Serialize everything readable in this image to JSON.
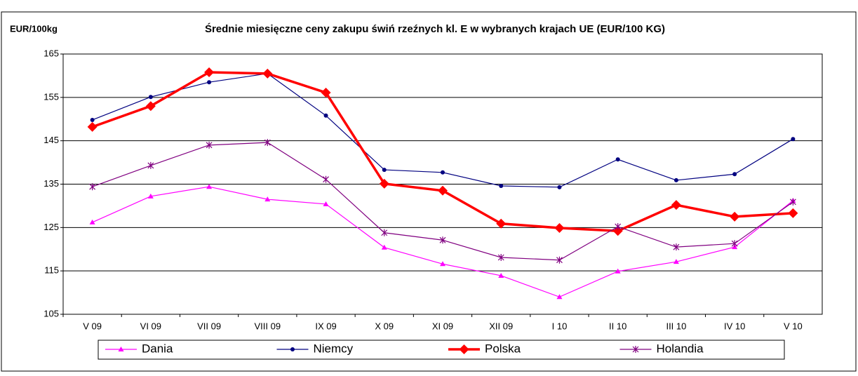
{
  "chart_data": {
    "type": "line",
    "title": "Średnie miesięczne ceny zakupu świń rzeźnych kl. E w wybranych krajach UE (EUR/100 KG)",
    "y_axis_label": "EUR/100kg",
    "categories": [
      "V 09",
      "VI 09",
      "VII 09",
      "VIII 09",
      "IX 09",
      "X 09",
      "XI 09",
      "XII 09",
      "I  10",
      "II  10",
      "III  10",
      "IV 10",
      "V 10"
    ],
    "ylim": [
      105,
      165
    ],
    "yticks": [
      105,
      115,
      125,
      135,
      145,
      155,
      165
    ],
    "grid": true,
    "legend": "bottom",
    "series": [
      {
        "name": "Dania",
        "color": "#ff00ff",
        "marker": "triangle",
        "values": [
          126.2,
          132.2,
          134.4,
          131.5,
          130.4,
          120.4,
          116.6,
          113.9,
          109.0,
          114.9,
          117.1,
          120.5,
          131.2
        ]
      },
      {
        "name": "Niemcy",
        "color": "#000080",
        "marker": "circle",
        "values": [
          149.8,
          155.1,
          158.5,
          160.5,
          150.8,
          138.3,
          137.7,
          134.6,
          134.3,
          140.7,
          135.9,
          137.3,
          145.4
        ]
      },
      {
        "name": "Polska",
        "color": "#ff0000",
        "marker": "diamond",
        "values": [
          148.2,
          153.0,
          160.8,
          160.5,
          156.1,
          135.1,
          133.5,
          125.9,
          124.9,
          124.2,
          130.2,
          127.5,
          128.3
        ]
      },
      {
        "name": "Holandia",
        "color": "#800080",
        "marker": "star",
        "values": [
          134.4,
          139.3,
          144.0,
          144.6,
          136.1,
          123.8,
          122.1,
          118.1,
          117.5,
          125.2,
          120.5,
          121.3,
          130.9
        ]
      }
    ]
  }
}
